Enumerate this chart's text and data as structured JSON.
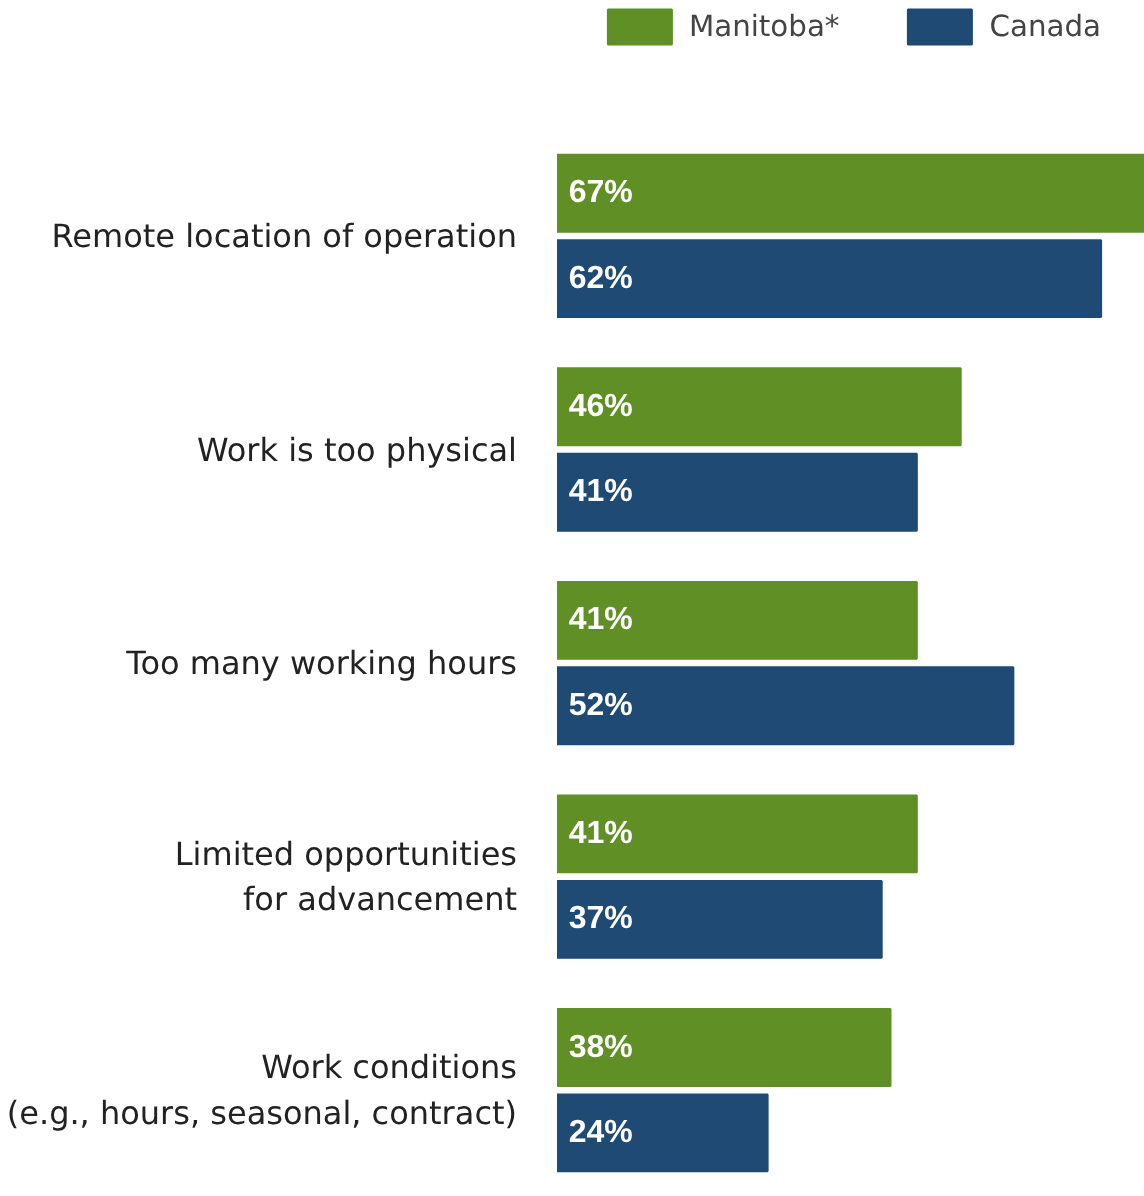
{
  "chart_data": {
    "type": "bar",
    "orientation": "horizontal",
    "legend": "top",
    "categories": [
      "Remote location of operation",
      "Work is too physical",
      "Too many working hours",
      "Limited opportunities\nfor advancement",
      "Work conditions\n(e.g., hours, seasonal, contract)"
    ],
    "series": [
      {
        "name": "Manitoba*",
        "color": "#5f8f25",
        "values": [
          67,
          46,
          41,
          41,
          38
        ],
        "value_labels": [
          "67%",
          "46%",
          "41%",
          "41%",
          "38%"
        ]
      },
      {
        "name": "Canada",
        "color": "#1f4a73",
        "values": [
          62,
          41,
          52,
          37,
          24
        ],
        "value_labels": [
          "62%",
          "41%",
          "52%",
          "37%",
          "24%"
        ]
      }
    ]
  }
}
